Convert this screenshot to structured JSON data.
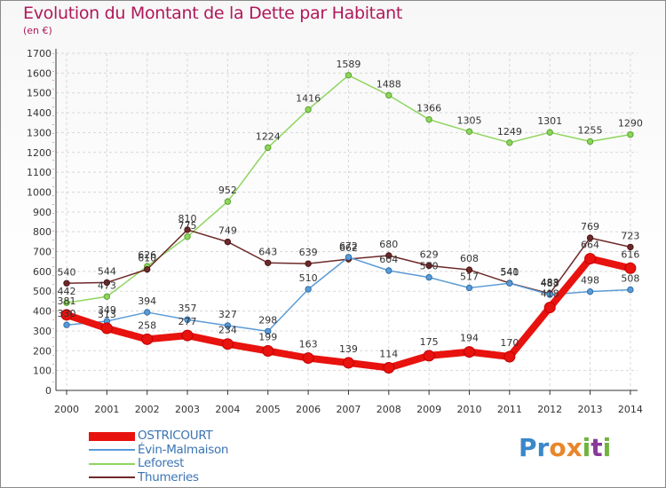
{
  "header": {
    "title": "Evolution du Montant de la Dette par Habitant",
    "unit": "(en €)"
  },
  "colors": {
    "title": "#b0185a",
    "OSTRICOURT": "#e8120e",
    "Evin-Malmaison": "#5b9bd5",
    "Leforest": "#8ed55e",
    "Thumeries": "#6e2a2a"
  },
  "logo": {
    "text": "Proxiti",
    "letters": [
      "P",
      "r",
      "o",
      "x",
      "i",
      "t",
      "i"
    ],
    "colors": [
      "#3a87c8",
      "#3a87c8",
      "#e8862b",
      "#e8862b",
      "#6fb43f",
      "#8a3a9a",
      "#6fb43f"
    ]
  },
  "chart_data": {
    "type": "line",
    "title": "Evolution du Montant de la Dette par Habitant",
    "ylabel": "(en €)",
    "xlabel": "",
    "ylim": [
      0,
      1700
    ],
    "yticks": [
      0,
      100,
      200,
      300,
      400,
      500,
      600,
      700,
      800,
      900,
      1000,
      1100,
      1200,
      1300,
      1400,
      1500,
      1600,
      1700
    ],
    "grid": true,
    "legend_position": "bottom-left",
    "categories": [
      "2000",
      "2001",
      "2002",
      "2003",
      "2004",
      "2005",
      "2006",
      "2007",
      "2008",
      "2009",
      "2010",
      "2011",
      "2012",
      "2013",
      "2014"
    ],
    "series": [
      {
        "name": "OSTRICOURT",
        "values": [
          381,
          313,
          258,
          277,
          234,
          199,
          163,
          139,
          114,
          175,
          194,
          170,
          418,
          664,
          616
        ]
      },
      {
        "name": "Évin-Malmaison",
        "values": [
          330,
          349,
          394,
          357,
          327,
          298,
          510,
          672,
          604,
          570,
          517,
          540,
          483,
          498,
          508
        ]
      },
      {
        "name": "Leforest",
        "values": [
          442,
          473,
          626,
          775,
          952,
          1224,
          1416,
          1589,
          1488,
          1366,
          1305,
          1249,
          1301,
          1255,
          1290
        ]
      },
      {
        "name": "Thumeries",
        "values": [
          540,
          544,
          610,
          810,
          749,
          643,
          639,
          662,
          680,
          629,
          608,
          541,
          488,
          769,
          723
        ]
      }
    ]
  }
}
